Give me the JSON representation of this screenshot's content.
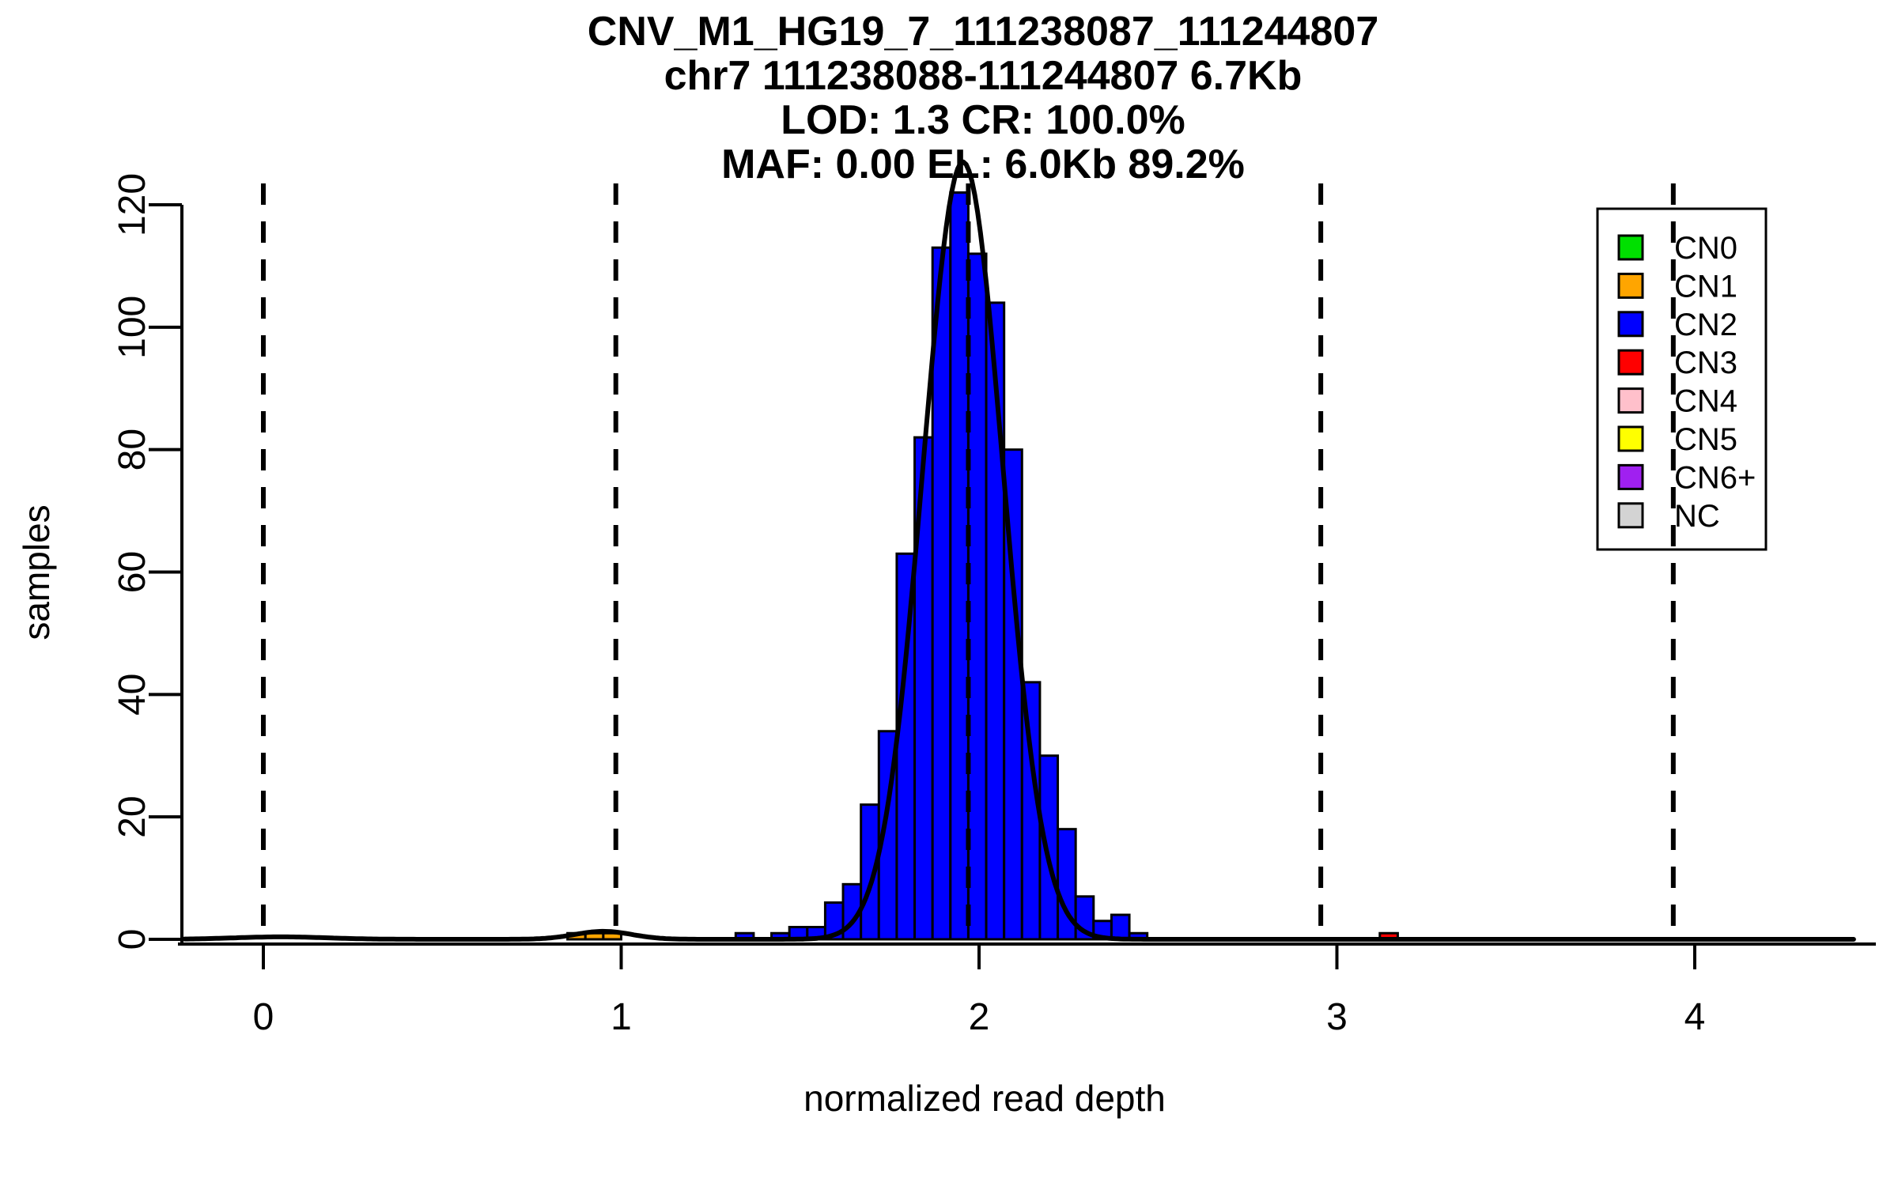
{
  "chart_data": {
    "type": "histogram",
    "title_lines": [
      "CNV_M1_HG19_7_111238087_111244807",
      "chr7 111238088-111244807 6.7Kb",
      "LOD: 1.3 CR: 100.0%",
      "MAF: 0.00 EL: 6.0Kb 89.2%"
    ],
    "xlabel": "normalized read depth",
    "ylabel": "samples",
    "x_ticks": [
      0,
      1,
      2,
      3,
      4
    ],
    "y_ticks": [
      0,
      20,
      40,
      60,
      80,
      100,
      120
    ],
    "xlim": [
      -0.22,
      4.45
    ],
    "ylim": [
      0,
      120
    ],
    "grid": false,
    "histogram": {
      "bar_border_color": "#000000",
      "series": [
        {
          "name": "CN2",
          "color": "#0000FF",
          "bin_start": 1.32,
          "bin_width": 0.05,
          "counts": [
            1,
            0,
            1,
            2,
            2,
            6,
            9,
            22,
            34,
            63,
            82,
            113,
            122,
            112,
            104,
            80,
            42,
            30,
            18,
            7,
            3,
            4,
            1
          ]
        },
        {
          "name": "CN1",
          "color": "#FFA500",
          "bin_start": 0.85,
          "bin_width": 0.05,
          "counts": [
            1,
            1,
            1
          ]
        },
        {
          "name": "CN3",
          "color": "#FF0000",
          "bin_start": 3.12,
          "bin_width": 0.05,
          "counts": [
            1
          ]
        }
      ]
    },
    "density_curve": {
      "color": "#000000",
      "components": [
        {
          "mu": 1.955,
          "sigma": 0.112,
          "amplitude": 127
        },
        {
          "mu": 0.95,
          "sigma": 0.08,
          "amplitude": 1.3
        },
        {
          "mu": 0.05,
          "sigma": 0.13,
          "amplitude": 0.4
        }
      ]
    },
    "dashed_lines_x": [
      0,
      0.985,
      1.97,
      2.955,
      3.94
    ],
    "legend": {
      "position": "top-right",
      "items": [
        {
          "label": "CN0",
          "color": "#00E000"
        },
        {
          "label": "CN1",
          "color": "#FFA500"
        },
        {
          "label": "CN2",
          "color": "#0000FF"
        },
        {
          "label": "CN3",
          "color": "#FF0000"
        },
        {
          "label": "CN4",
          "color": "#FFC0CB"
        },
        {
          "label": "CN5",
          "color": "#FFFF00"
        },
        {
          "label": "CN6+",
          "color": "#A020F0"
        },
        {
          "label": "NC",
          "color": "#D3D3D3"
        }
      ]
    }
  }
}
